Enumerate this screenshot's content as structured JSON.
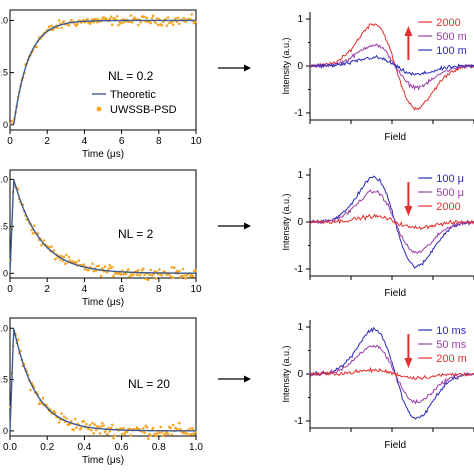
{
  "chart_data": [
    {
      "type": "scatter",
      "annotation": "NL = 0.2",
      "xlabel": "Time (μs)",
      "ylabel": "",
      "xlim": [
        0,
        10
      ],
      "xticks": [
        "0",
        "2",
        "4",
        "6",
        "8",
        "10"
      ],
      "yticks": [
        "0",
        "0.5",
        "1.0"
      ],
      "ylim": [
        -0.05,
        1.1
      ],
      "legend": {
        "position": "bottom-right",
        "entries": [
          "Theoretic",
          "UWSSB-PSD"
        ]
      },
      "series": [
        {
          "name": "Theoretic",
          "kind": "line",
          "color": "#3b5b92",
          "model": "rise",
          "tau": 0.8,
          "t0": 0.2,
          "amplitude": 1.0
        },
        {
          "name": "UWSSB-PSD",
          "kind": "points",
          "color": "#f5a623",
          "model": "rise",
          "tau": 0.8,
          "t0": 0.2,
          "amplitude": 1.0,
          "noise": 0.04
        }
      ]
    },
    {
      "type": "scatter",
      "annotation": "NL = 2",
      "xlabel": "Time (μs)",
      "ylabel": "",
      "xlim": [
        0,
        10
      ],
      "xticks": [
        "0",
        "2",
        "4",
        "6",
        "8",
        "10"
      ],
      "yticks": [
        "0",
        "0.5",
        "1.0"
      ],
      "ylim": [
        -0.05,
        1.1
      ],
      "series": [
        {
          "name": "Theoretic",
          "kind": "line",
          "color": "#3b5b92",
          "model": "decay",
          "tau": 1.4,
          "t0": 0.2,
          "amplitude": 1.0
        },
        {
          "name": "UWSSB-PSD",
          "kind": "points",
          "color": "#f5a623",
          "model": "decay",
          "tau": 1.4,
          "t0": 0.2,
          "amplitude": 1.0,
          "noise": 0.05
        }
      ]
    },
    {
      "type": "scatter",
      "annotation": "NL = 20",
      "xlabel": "Time (μs)",
      "ylabel": "",
      "xlim": [
        0,
        1
      ],
      "xticks": [
        "0.0",
        "0.2",
        "0.4",
        "0.6",
        "0.8",
        "1.0"
      ],
      "yticks": [
        "0",
        "0.5",
        "1.0"
      ],
      "ylim": [
        -0.05,
        1.1
      ],
      "series": [
        {
          "name": "Theoretic",
          "kind": "line",
          "color": "#3b5b92",
          "model": "decay",
          "tau": 0.12,
          "t0": 0.02,
          "amplitude": 1.0
        },
        {
          "name": "UWSSB-PSD",
          "kind": "points",
          "color": "#f5a623",
          "model": "decay",
          "tau": 0.12,
          "t0": 0.02,
          "amplitude": 1.0,
          "noise": 0.06
        }
      ]
    },
    {
      "type": "line",
      "xlabel": "Field",
      "ylabel": "Intensity (a.u.)",
      "ylim": [
        -1.15,
        1.15
      ],
      "yticks": [
        "-1",
        "0",
        "1"
      ],
      "arrow": "up",
      "legend": {
        "position": "top-right",
        "entries": [
          "2000",
          "500 m",
          "100 m"
        ]
      },
      "series": [
        {
          "name": "2000",
          "color": "#e0312f",
          "amplitude": 0.9
        },
        {
          "name": "500 m",
          "color": "#9b3fa8",
          "amplitude": 0.45
        },
        {
          "name": "100 m",
          "color": "#2a2ab8",
          "amplitude": 0.18
        }
      ]
    },
    {
      "type": "line",
      "xlabel": "Field",
      "ylabel": "Intensity (a.u.)",
      "ylim": [
        -1.15,
        1.15
      ],
      "yticks": [
        "-1",
        "0",
        "1"
      ],
      "arrow": "down",
      "legend": {
        "position": "top-right",
        "entries": [
          "100 μ",
          "500 μ",
          "2000"
        ]
      },
      "series": [
        {
          "name": "100 μ",
          "color": "#2a2ab8",
          "amplitude": 0.95
        },
        {
          "name": "500 μ",
          "color": "#9b3fa8",
          "amplitude": 0.65
        },
        {
          "name": "2000",
          "color": "#e0312f",
          "amplitude": 0.12
        }
      ]
    },
    {
      "type": "line",
      "xlabel": "Field",
      "ylabel": "Intensity (a.u.)",
      "ylim": [
        -1.15,
        1.15
      ],
      "yticks": [
        "-1",
        "0",
        "1"
      ],
      "arrow": "down",
      "legend": {
        "position": "top-right",
        "entries": [
          "10 ms",
          "50 ms",
          "200 m"
        ]
      },
      "series": [
        {
          "name": "10 ms",
          "color": "#2a2ab8",
          "amplitude": 0.95
        },
        {
          "name": "50 ms",
          "color": "#9b3fa8",
          "amplitude": 0.6
        },
        {
          "name": "200 m",
          "color": "#e0312f",
          "amplitude": 0.08
        }
      ]
    }
  ]
}
